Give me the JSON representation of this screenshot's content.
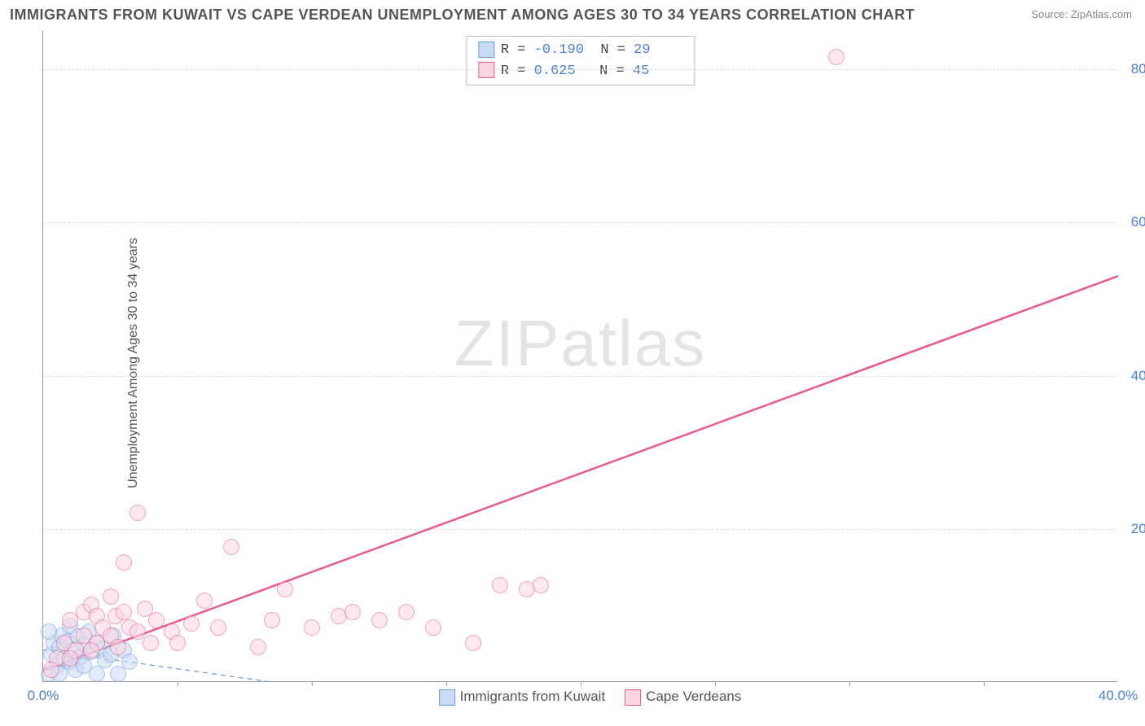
{
  "title": "IMMIGRANTS FROM KUWAIT VS CAPE VERDEAN UNEMPLOYMENT AMONG AGES 30 TO 34 YEARS CORRELATION CHART",
  "source": "Source: ZipAtlas.com",
  "watermark_a": "ZIP",
  "watermark_b": "atlas",
  "ylabel": "Unemployment Among Ages 30 to 34 years",
  "chart": {
    "type": "scatter",
    "xlim": [
      0,
      40
    ],
    "ylim": [
      0,
      85
    ],
    "xticks": [
      0,
      40
    ],
    "xtick_labels": [
      "0.0%",
      "40.0%"
    ],
    "xtick_minor": [
      5,
      10,
      15,
      20,
      25,
      30,
      35
    ],
    "yticks": [
      20,
      40,
      60,
      80
    ],
    "ytick_labels": [
      "20.0%",
      "40.0%",
      "60.0%",
      "80.0%"
    ],
    "background_color": "#ffffff",
    "grid_color_h": "#dddddd",
    "grid_color_v": "#cccccc",
    "axis_color": "#999999",
    "label_color": "#4a7fd6"
  },
  "series": [
    {
      "name": "Immigrants from Kuwait",
      "key": "kuwait",
      "fill": "#c8daf4",
      "stroke": "#6a9ae0",
      "opacity": 0.55,
      "marker_r": 10,
      "R": "-0.190",
      "N": "29",
      "trend": {
        "x1": 0,
        "y1": 4.2,
        "x2": 8.5,
        "y2": 0,
        "dash": "6,5",
        "color": "#6a9ae0",
        "width": 1.2
      },
      "points": [
        [
          0.3,
          3.5
        ],
        [
          0.4,
          5.0
        ],
        [
          0.5,
          2.0
        ],
        [
          0.6,
          4.5
        ],
        [
          0.7,
          6.0
        ],
        [
          0.8,
          3.0
        ],
        [
          0.9,
          5.2
        ],
        [
          1.0,
          2.5
        ],
        [
          1.0,
          7.2
        ],
        [
          1.1,
          4.0
        ],
        [
          1.2,
          1.5
        ],
        [
          1.3,
          5.8
        ],
        [
          1.4,
          3.2
        ],
        [
          1.5,
          4.8
        ],
        [
          1.5,
          2.0
        ],
        [
          1.7,
          6.5
        ],
        [
          1.8,
          3.8
        ],
        [
          2.0,
          5.0
        ],
        [
          2.0,
          1.0
        ],
        [
          2.2,
          4.2
        ],
        [
          2.3,
          2.8
        ],
        [
          2.5,
          3.5
        ],
        [
          2.6,
          6.0
        ],
        [
          2.8,
          1.0
        ],
        [
          3.0,
          4.0
        ],
        [
          3.2,
          2.5
        ],
        [
          0.2,
          1.0
        ],
        [
          0.2,
          6.5
        ],
        [
          0.6,
          1.0
        ]
      ]
    },
    {
      "name": "Cape Verdeans",
      "key": "capeverde",
      "fill": "#fbd6e1",
      "stroke": "#e95a8c",
      "opacity": 0.55,
      "marker_r": 10,
      "R": "0.625",
      "N": "45",
      "trend": {
        "x1": 0,
        "y1": 1.5,
        "x2": 40,
        "y2": 53,
        "dash": "none",
        "color": "#e95a8c",
        "width": 2.5
      },
      "points": [
        [
          0.5,
          3.0
        ],
        [
          0.8,
          5.0
        ],
        [
          1.0,
          8.0
        ],
        [
          1.2,
          4.0
        ],
        [
          1.5,
          9.0
        ],
        [
          1.5,
          6.0
        ],
        [
          1.8,
          10.0
        ],
        [
          2.0,
          5.0
        ],
        [
          2.0,
          8.5
        ],
        [
          2.2,
          7.0
        ],
        [
          2.5,
          6.0
        ],
        [
          2.5,
          11.0
        ],
        [
          2.7,
          8.5
        ],
        [
          3.0,
          15.5
        ],
        [
          3.0,
          9.0
        ],
        [
          3.2,
          7.0
        ],
        [
          3.5,
          22.0
        ],
        [
          3.5,
          6.5
        ],
        [
          3.8,
          9.5
        ],
        [
          4.0,
          5.0
        ],
        [
          4.2,
          8.0
        ],
        [
          4.8,
          6.5
        ],
        [
          5.0,
          5.0
        ],
        [
          5.5,
          7.5
        ],
        [
          6.0,
          10.5
        ],
        [
          6.5,
          7.0
        ],
        [
          7.0,
          17.5
        ],
        [
          8.0,
          4.5
        ],
        [
          8.5,
          8.0
        ],
        [
          9.0,
          12.0
        ],
        [
          10.0,
          7.0
        ],
        [
          11.0,
          8.5
        ],
        [
          11.5,
          9.0
        ],
        [
          12.5,
          8.0
        ],
        [
          13.5,
          9.0
        ],
        [
          14.5,
          7.0
        ],
        [
          16.0,
          5.0
        ],
        [
          17.0,
          12.5
        ],
        [
          18.0,
          12.0
        ],
        [
          18.5,
          12.5
        ],
        [
          29.5,
          81.5
        ],
        [
          1.0,
          3.0
        ],
        [
          1.8,
          4.0
        ],
        [
          0.3,
          1.5
        ],
        [
          2.8,
          4.5
        ]
      ]
    }
  ],
  "stat_box_labels": {
    "R": "R =",
    "N": "N ="
  },
  "legend_bottom": [
    {
      "label": "Immigrants from Kuwait",
      "fill": "#c8daf4",
      "stroke": "#6a9ae0"
    },
    {
      "label": "Cape Verdeans",
      "fill": "#fbd6e1",
      "stroke": "#e95a8c"
    }
  ]
}
